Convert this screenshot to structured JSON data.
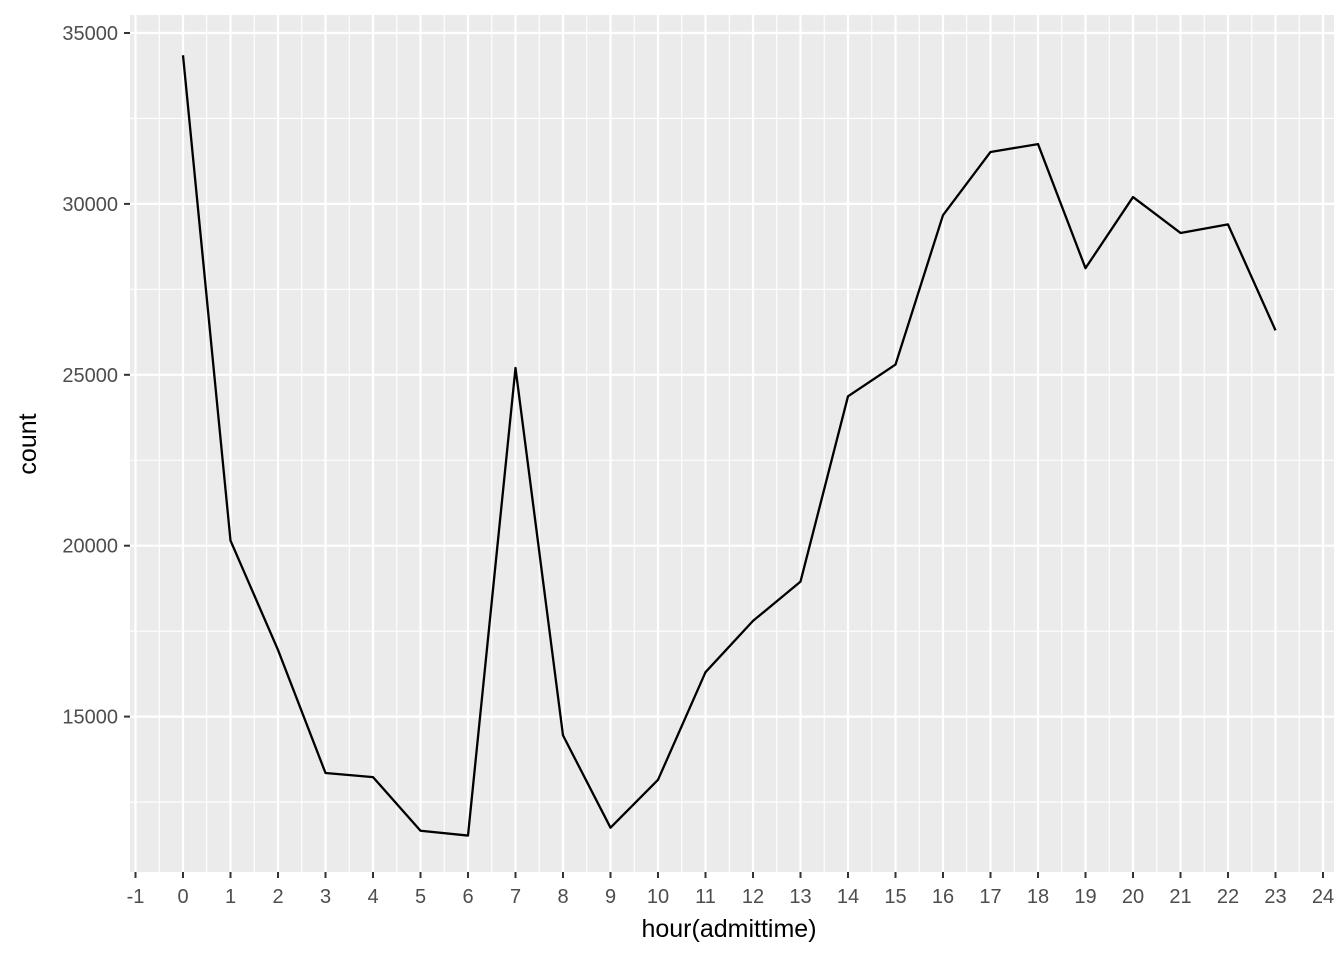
{
  "chart_data": {
    "type": "line",
    "title": "",
    "xlabel": "hour(admittime)",
    "ylabel": "count",
    "xlim": [
      -1,
      24
    ],
    "ylim": [
      11000,
      35500
    ],
    "x_ticks": [
      -1,
      0,
      1,
      2,
      3,
      4,
      5,
      6,
      7,
      8,
      9,
      10,
      11,
      12,
      13,
      14,
      15,
      16,
      17,
      18,
      19,
      20,
      21,
      22,
      23,
      24
    ],
    "x_tick_labels": [
      "-1",
      "0",
      "1",
      "2",
      "3",
      "4",
      "5",
      "6",
      "7",
      "8",
      "9",
      "10",
      "11",
      "12",
      "13",
      "14",
      "15",
      "16",
      "17",
      "18",
      "19",
      "20",
      "21",
      "22",
      "23",
      "24"
    ],
    "y_ticks": [
      15000,
      20000,
      25000,
      30000,
      35000
    ],
    "y_tick_labels": [
      "15000",
      "20000",
      "25000",
      "30000",
      "35000"
    ],
    "grid": true,
    "legend": "none",
    "colors": {
      "panel": "#ebebeb",
      "grid": "#ffffff",
      "line": "#000000",
      "tick_text": "#4d4d4d"
    },
    "x": [
      0,
      1,
      2,
      3,
      4,
      5,
      6,
      7,
      8,
      9,
      10,
      11,
      12,
      13,
      14,
      15,
      16,
      17,
      18,
      19,
      20,
      21,
      22,
      23
    ],
    "values": [
      34350,
      20150,
      16950,
      13350,
      13230,
      11660,
      11520,
      25200,
      14450,
      11750,
      13150,
      16300,
      17800,
      18950,
      24370,
      25300,
      29670,
      31520,
      31750,
      28120,
      30200,
      29150,
      29400,
      26300
    ]
  }
}
